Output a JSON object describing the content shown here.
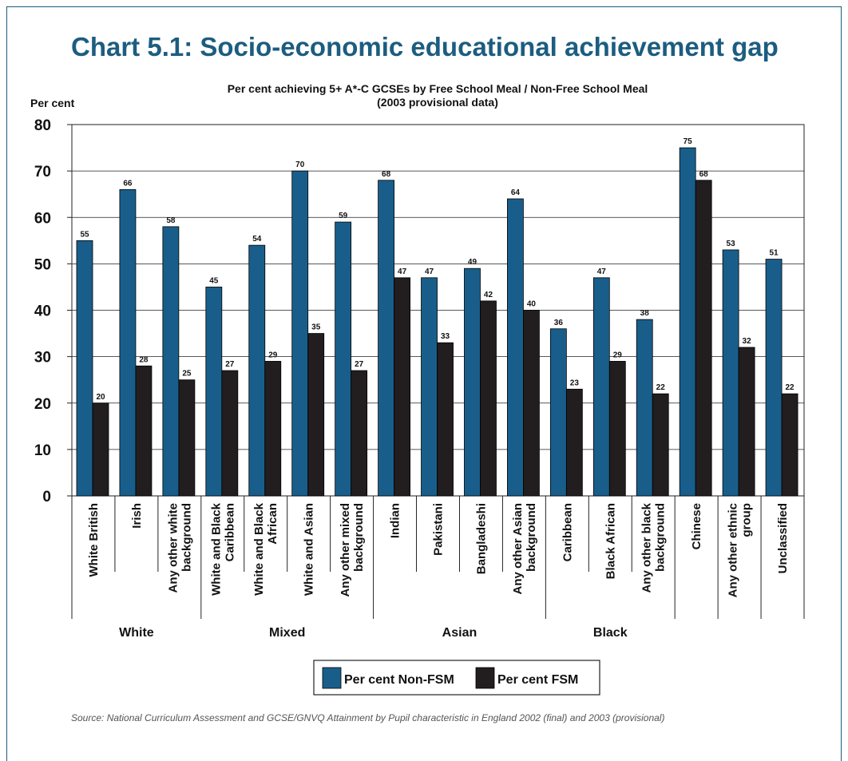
{
  "colors": {
    "nonfsm": "#195e8a",
    "fsm": "#221d1e",
    "title": "#1c5d80"
  },
  "chart_data": {
    "type": "bar",
    "title": "Chart 5.1: Socio-economic educational achievement gap",
    "subtitle_lines": [
      "Per cent achieving 5+ A*-C GCSEs by Free School Meal / Non-Free School Meal",
      "(2003 provisional data)"
    ],
    "ylabel": "Per cent",
    "ylim": [
      0,
      80
    ],
    "yticks": [
      "0",
      "10",
      "20",
      "30",
      "40",
      "50",
      "60",
      "70",
      "80"
    ],
    "grid": true,
    "legend_position": "bottom",
    "categories": [
      [
        "White British"
      ],
      [
        "Irish"
      ],
      [
        "Any other white",
        "background"
      ],
      [
        "White and Black",
        "Caribbean"
      ],
      [
        "White and Black",
        "African"
      ],
      [
        "White and Asian"
      ],
      [
        "Any other mixed",
        "background"
      ],
      [
        "Indian"
      ],
      [
        "Pakistani"
      ],
      [
        "Bangladeshi"
      ],
      [
        "Any other Asian",
        "background"
      ],
      [
        "Caribbean"
      ],
      [
        "Black African"
      ],
      [
        "Any other black",
        "background"
      ],
      [
        "Chinese"
      ],
      [
        "Any other ethnic",
        "group"
      ],
      [
        "Unclassified"
      ]
    ],
    "groups": [
      {
        "label": "White",
        "start": 0,
        "end": 2
      },
      {
        "label": "Mixed",
        "start": 3,
        "end": 6
      },
      {
        "label": "Asian",
        "start": 7,
        "end": 10
      },
      {
        "label": "Black",
        "start": 11,
        "end": 13
      },
      {
        "label": "",
        "start": 14,
        "end": 14
      },
      {
        "label": "",
        "start": 15,
        "end": 15
      },
      {
        "label": "",
        "start": 16,
        "end": 16
      }
    ],
    "series": [
      {
        "name": "Per cent Non-FSM",
        "color": "#195e8a",
        "values": [
          55,
          66,
          58,
          45,
          54,
          70,
          59,
          68,
          47,
          49,
          64,
          36,
          47,
          38,
          75,
          53,
          51
        ]
      },
      {
        "name": "Per cent FSM",
        "color": "#221d1e",
        "values": [
          20,
          28,
          25,
          27,
          29,
          35,
          27,
          47,
          33,
          42,
          40,
          23,
          29,
          22,
          68,
          32,
          22
        ]
      }
    ]
  },
  "source_text": "Source: National Curriculum Assessment and GCSE/GNVQ Attainment by Pupil characteristic in England 2002 (final) and 2003 (provisional)"
}
